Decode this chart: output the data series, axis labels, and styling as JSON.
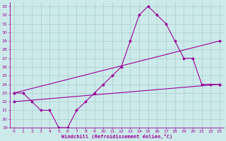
{
  "xlabel": "Windchill (Refroidissement éolien,°C)",
  "xlim": [
    -0.5,
    23.5
  ],
  "ylim": [
    19,
    33.5
  ],
  "yticks": [
    19,
    20,
    21,
    22,
    23,
    24,
    25,
    26,
    27,
    28,
    29,
    30,
    31,
    32,
    33
  ],
  "xticks": [
    0,
    1,
    2,
    3,
    4,
    5,
    6,
    7,
    8,
    9,
    10,
    11,
    12,
    13,
    14,
    15,
    16,
    17,
    18,
    19,
    20,
    21,
    22,
    23
  ],
  "bg_color": "#cceaea",
  "line_color": "#990099",
  "grid_color": "#aacccc",
  "curve1_x": [
    0,
    1,
    2,
    3,
    4,
    5,
    6,
    7,
    8,
    9,
    10,
    11,
    12,
    13,
    14,
    15,
    16,
    17,
    18,
    19,
    20,
    21,
    22,
    23
  ],
  "curve1_y": [
    23,
    23,
    22,
    21,
    21,
    19,
    19,
    21,
    22,
    23,
    24,
    25,
    26,
    29,
    32,
    33,
    32,
    31,
    29,
    27,
    27,
    24,
    24,
    24
  ],
  "line2_x": [
    0,
    23
  ],
  "line2_y": [
    23,
    29
  ],
  "line3_x": [
    0,
    23
  ],
  "line3_y": [
    22,
    24
  ]
}
